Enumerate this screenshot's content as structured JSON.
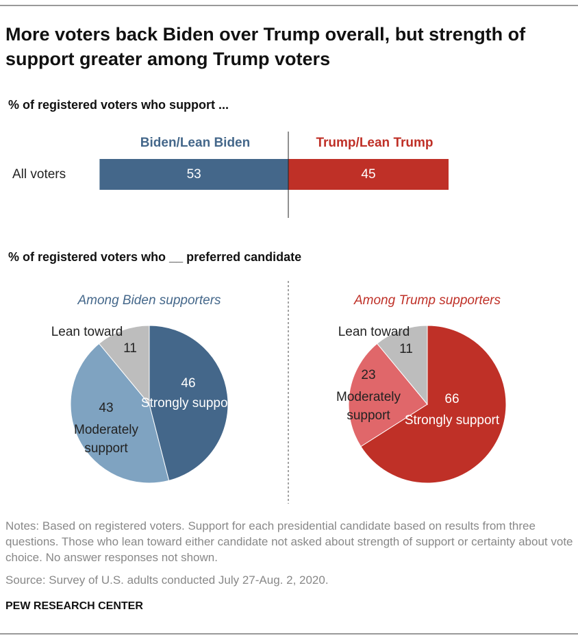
{
  "title": "More voters back Biden over Trump overall, but strength of support greater among Trump voters",
  "chart_data": [
    {
      "type": "diverging_bar",
      "subtitle": "% of registered voters who support ...",
      "categories": [
        "All voters"
      ],
      "series": [
        {
          "name": "Biden/Lean Biden",
          "color": "#44678a",
          "values": [
            53
          ]
        },
        {
          "name": "Trump/Lean Trump",
          "color": "#bf3027",
          "values": [
            45
          ]
        }
      ]
    },
    {
      "type": "pie",
      "subtitle": "% of registered voters who __ preferred candidate",
      "title": "Among Biden supporters",
      "title_color": "#44678a",
      "categories": [
        "Strongly support",
        "Moderately support",
        "Lean toward"
      ],
      "values": [
        46,
        43,
        11
      ],
      "colors": [
        "#44678a",
        "#7fa3c1",
        "#bdbdbd"
      ]
    },
    {
      "type": "pie",
      "title": "Among Trump supporters",
      "title_color": "#bf3027",
      "categories": [
        "Strongly support",
        "Moderately support",
        "Lean toward"
      ],
      "values": [
        66,
        23,
        11
      ],
      "colors": [
        "#bf3027",
        "#e0676a",
        "#bdbdbd"
      ]
    }
  ],
  "notes": "Notes: Based on registered voters. Support for each presidential candidate based on results from three questions. Those who lean toward either candidate not asked about strength of support or certainty about vote choice. No answer responses not shown.",
  "source": "Source: Survey of U.S. adults conducted July 27-Aug. 2, 2020.",
  "footer": "PEW RESEARCH CENTER"
}
